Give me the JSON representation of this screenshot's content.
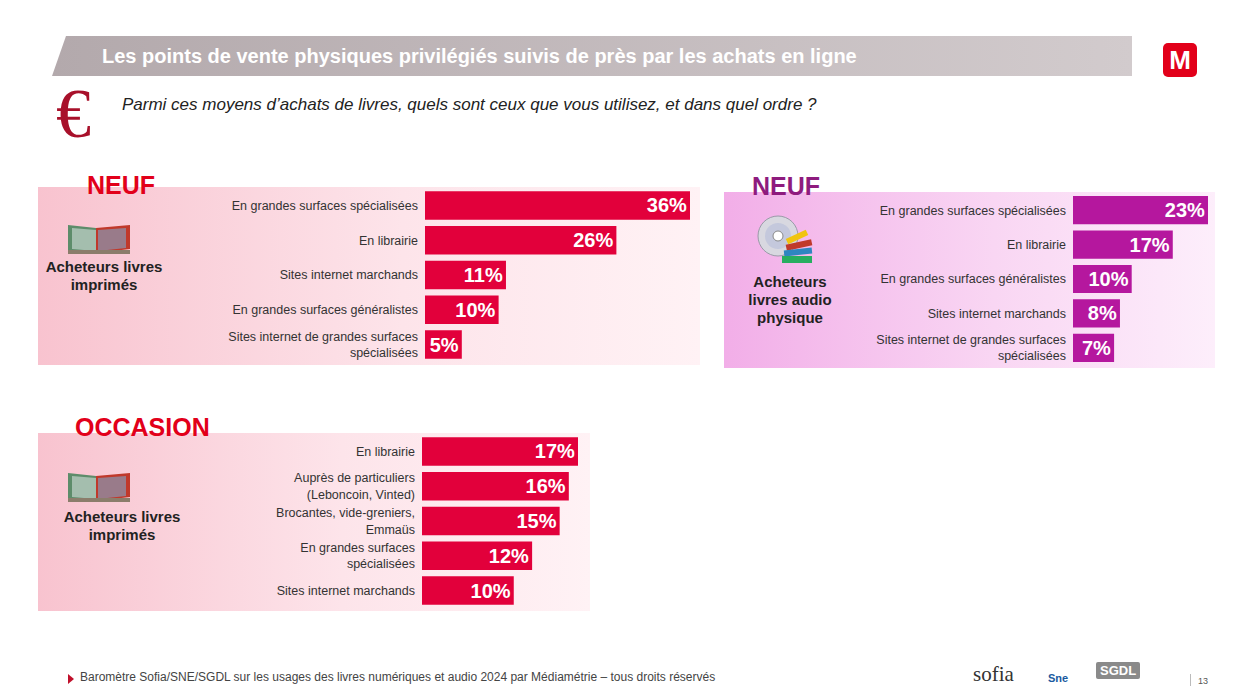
{
  "page": {
    "title": "Les points de vente physiques privilégiés suivis de près par les achats en ligne",
    "logo": "M",
    "currency_symbol": "€",
    "question": "Parmi ces moyens d’achats de livres, quels sont ceux que vous utilisez, et dans quel ordre ?",
    "footer": "Baromètre Sofia/SNE/SGDL sur les usages des livres numériques et audio 2024 par Médiamétrie – tous droits réservés",
    "partner_logos": [
      "sofia",
      "Sne",
      "SGDL"
    ],
    "page_number": "13"
  },
  "chart_data": [
    {
      "type": "bar",
      "orientation": "horizontal",
      "title": "NEUF",
      "subtitle": "Acheteurs livres imprimés",
      "categories": [
        "En grandes surfaces spécialisées",
        "En librairie",
        "Sites internet marchands",
        "En grandes surfaces généralistes",
        "Sites internet de grandes surfaces spécialisées"
      ],
      "values": [
        36,
        26,
        11,
        10,
        5
      ],
      "value_labels": [
        "36%",
        "26%",
        "11%",
        "10%",
        "5%"
      ],
      "color": "#e2003b",
      "xlim": [
        0,
        36
      ],
      "xticks": [],
      "data_labels": true,
      "tick_labels": "y",
      "grid": false
    },
    {
      "type": "bar",
      "orientation": "horizontal",
      "title": "NEUF",
      "subtitle": "Acheteurs livres audio physique",
      "categories": [
        "En grandes surfaces spécialisées",
        "En librairie",
        "En grandes surfaces généralistes",
        "Sites internet marchands",
        "Sites internet de grandes surfaces spécialisées"
      ],
      "values": [
        23,
        17,
        10,
        8,
        7
      ],
      "value_labels": [
        "23%",
        "17%",
        "10%",
        "8%",
        "7%"
      ],
      "color": "#b5179e",
      "xlim": [
        0,
        23
      ],
      "xticks": [],
      "data_labels": true,
      "tick_labels": "y",
      "grid": false
    },
    {
      "type": "bar",
      "orientation": "horizontal",
      "title": "OCCASION",
      "subtitle": "Acheteurs livres imprimés",
      "categories": [
        "En librairie",
        "Auprès de particuliers (Leboncoin, Vinted)",
        "Brocantes, vide-greniers, Emmaüs",
        "En grandes surfaces spécialisées",
        "Sites internet marchands"
      ],
      "values": [
        17,
        16,
        15,
        12,
        10
      ],
      "value_labels": [
        "17%",
        "16%",
        "15%",
        "12%",
        "10%"
      ],
      "color": "#e2003b",
      "xlim": [
        0,
        17
      ],
      "xticks": [],
      "data_labels": true,
      "tick_labels": "y",
      "grid": false
    }
  ]
}
